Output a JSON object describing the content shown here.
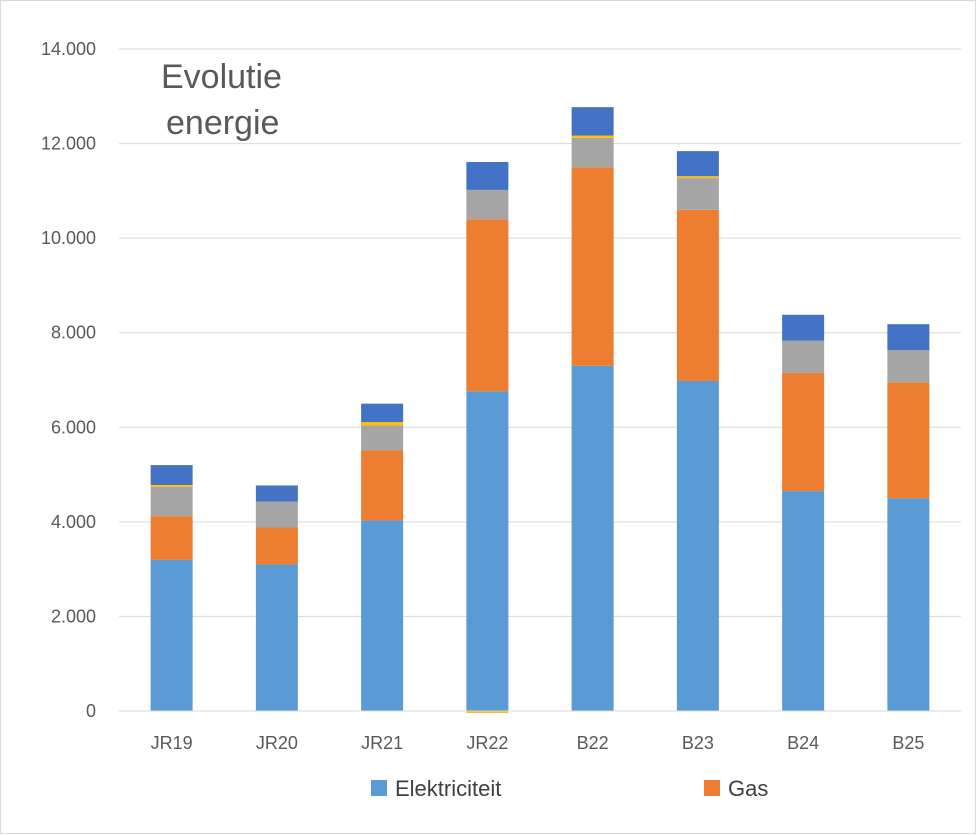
{
  "chart_data": {
    "type": "bar",
    "stacked": true,
    "title": "Evolutie energie",
    "title_lines": [
      "Evolutie",
      "energie"
    ],
    "categories": [
      "JR19",
      "JR20",
      "JR21",
      "JR22",
      "B22",
      "B23",
      "B24",
      "B25"
    ],
    "ylim": [
      0,
      14000
    ],
    "yticks": [
      0,
      2000,
      4000,
      6000,
      8000,
      10000,
      12000,
      14000
    ],
    "ytick_labels": [
      "0",
      "2.000",
      "4.000",
      "6.000",
      "8.000",
      "10.000",
      "12.000",
      "14.000"
    ],
    "grid": true,
    "legend_position": "bottom",
    "series": [
      {
        "name": "Elektriciteit",
        "color": "#5b9bd5",
        "values": [
          3200,
          3100,
          4030,
          6760,
          7300,
          6980,
          4650,
          4500
        ],
        "in_legend": true
      },
      {
        "color": "#ed7d31",
        "values": [
          920,
          780,
          1480,
          3640,
          4200,
          3620,
          2500,
          2450
        ],
        "in_legend": true,
        "legend_label": "Gas"
      },
      {
        "color": "#a5a5a5",
        "values": [
          620,
          550,
          530,
          620,
          620,
          670,
          680,
          680
        ],
        "in_legend": false
      },
      {
        "color": "#ffc000",
        "values": [
          40,
          0,
          70,
          0,
          50,
          40,
          0,
          0
        ],
        "negative_values": [
          0,
          0,
          0,
          -40,
          0,
          0,
          0,
          0
        ],
        "in_legend": false
      },
      {
        "color": "#4472c4",
        "values": [
          420,
          340,
          390,
          590,
          600,
          530,
          550,
          550
        ],
        "in_legend": false
      }
    ]
  }
}
